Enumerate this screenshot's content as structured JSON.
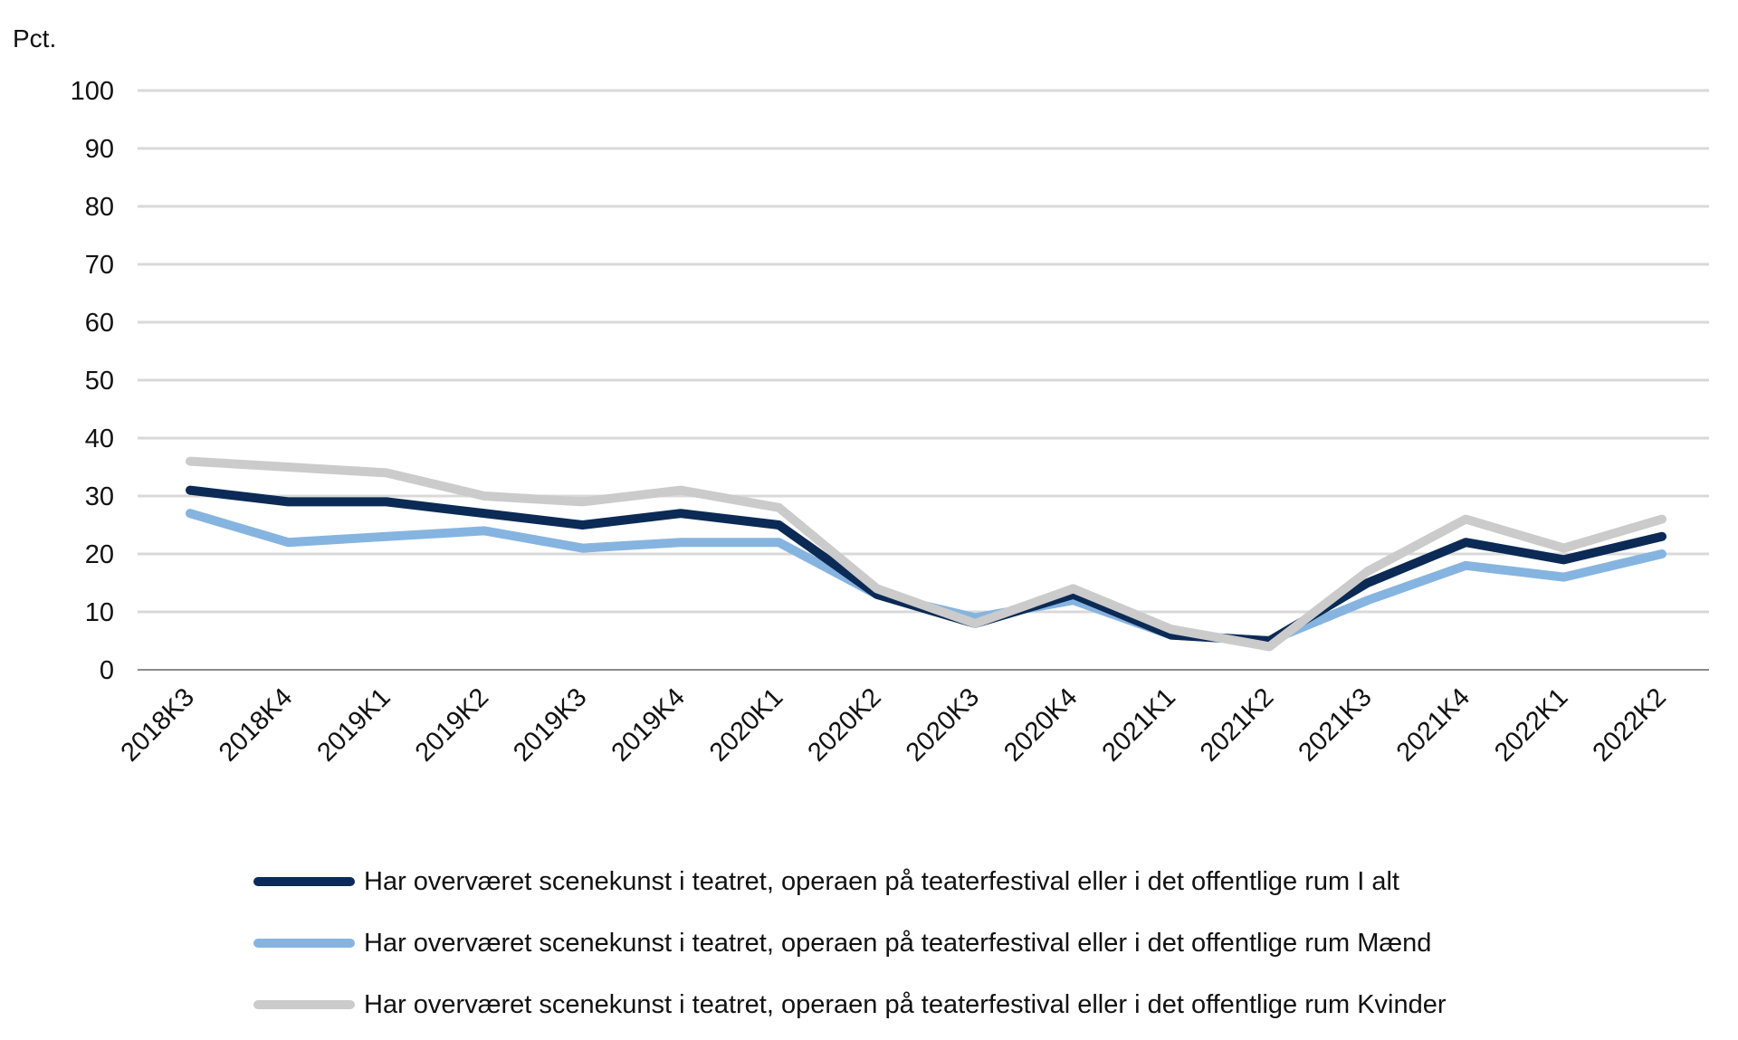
{
  "chart_data": {
    "type": "line",
    "unit_label": "Pct.",
    "ylim": [
      0,
      100
    ],
    "yticks": [
      0,
      10,
      20,
      30,
      40,
      50,
      60,
      70,
      80,
      90,
      100
    ],
    "grid": true,
    "legend_position": "bottom",
    "categories": [
      "2018K3",
      "2018K4",
      "2019K1",
      "2019K2",
      "2019K3",
      "2019K4",
      "2020K1",
      "2020K2",
      "2020K3",
      "2020K4",
      "2021K1",
      "2021K2",
      "2021K3",
      "2021K4",
      "2022K1",
      "2022K2"
    ],
    "series": [
      {
        "name": "Har overværet scenekunst i teatret, operaen på teaterfestival eller i det offentlige rum I alt",
        "color": "#0b2a55",
        "values": [
          31,
          29,
          29,
          27,
          25,
          27,
          25,
          13,
          8,
          13,
          6,
          5,
          15,
          22,
          19,
          23
        ]
      },
      {
        "name": "Har overværet scenekunst i teatret, operaen på teaterfestival eller i det offentlige rum Mænd",
        "color": "#86b4e0",
        "values": [
          27,
          22,
          23,
          24,
          21,
          22,
          22,
          13,
          9,
          12,
          6,
          5,
          12,
          18,
          16,
          20
        ]
      },
      {
        "name": "Har overværet scenekunst i teatret, operaen på teaterfestival eller i det offentlige rum Kvinder",
        "color": "#cbcbcb",
        "values": [
          36,
          35,
          34,
          30,
          29,
          31,
          28,
          14,
          8,
          14,
          7,
          4,
          17,
          26,
          21,
          26
        ]
      }
    ]
  }
}
